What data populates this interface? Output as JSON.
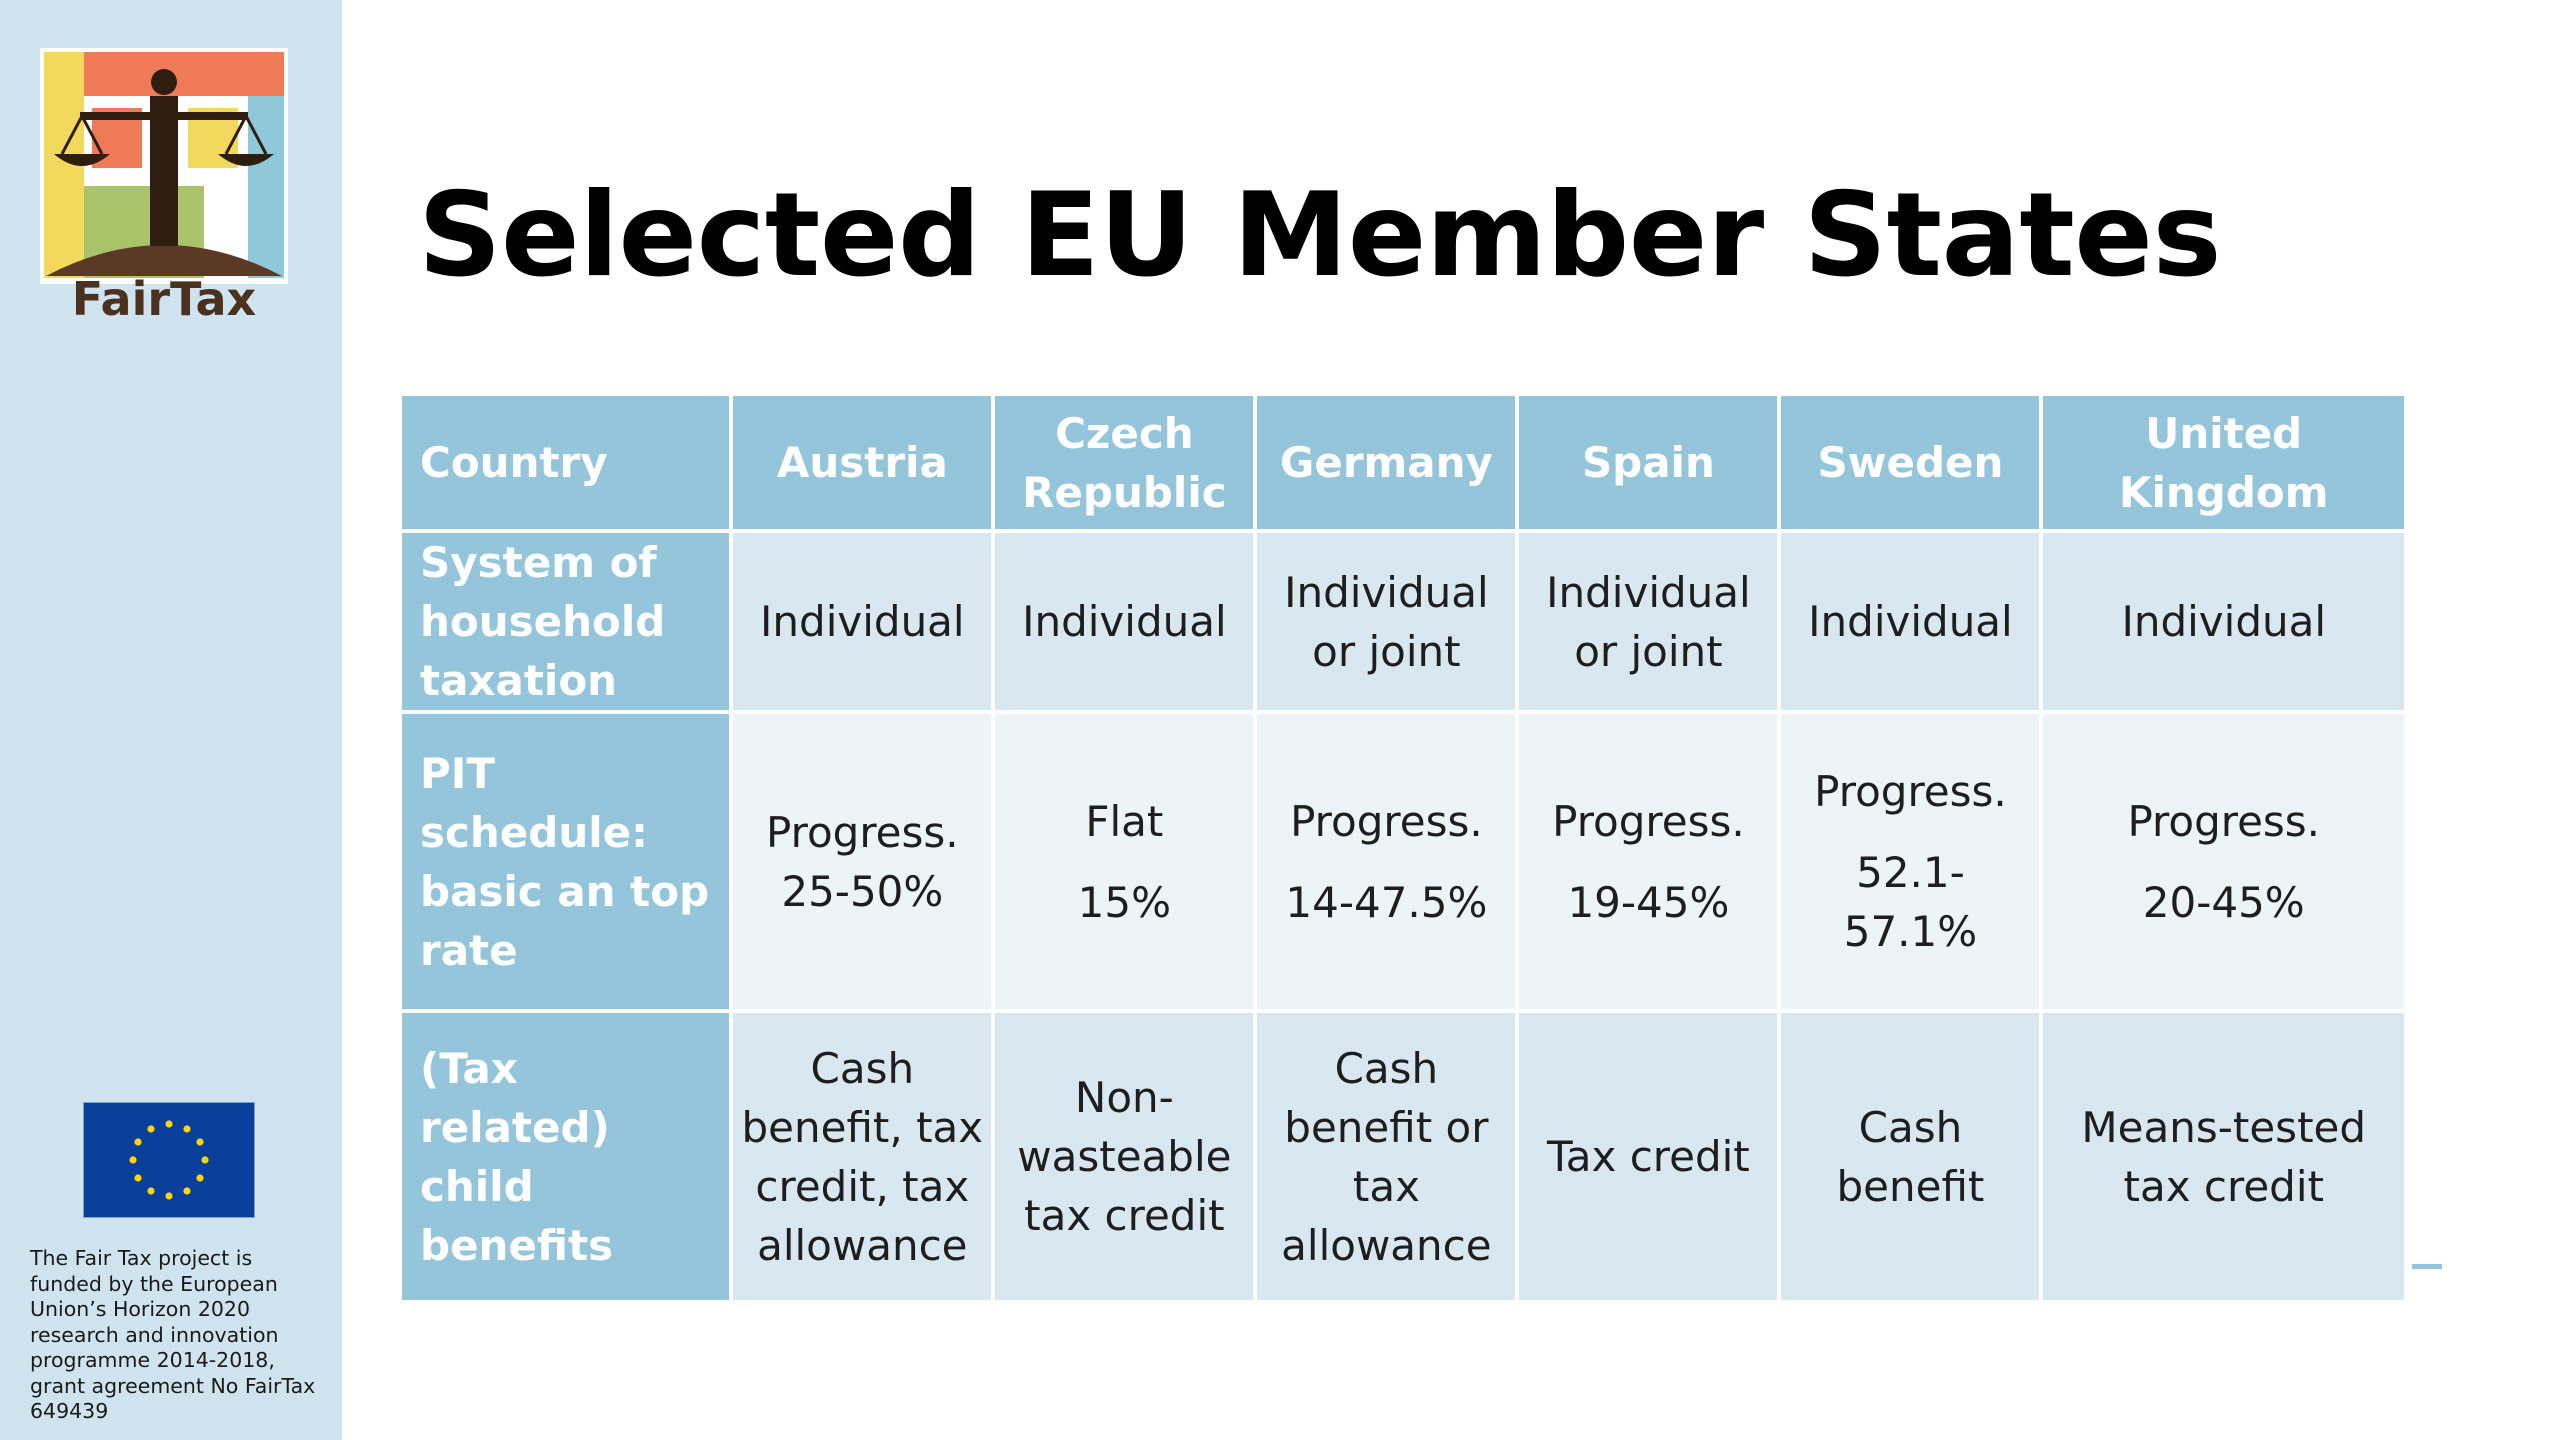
{
  "slide": {
    "title": "Selected EU Member States"
  },
  "sidebar": {
    "logo_text": "FairTax",
    "funding_text": "The Fair Tax project is funded by the European Union’s Horizon 2020 research and innovation programme 2014-2018, grant agreement No FairTax 649439"
  },
  "colors": {
    "sidebar_bg": "#cfe4ee",
    "header_bg": "#94c5da",
    "row_dark": "#d9e8f0",
    "row_light": "#edf4f8",
    "eu_blue": "#0a3e9b",
    "eu_star": "#ffd500"
  },
  "table": {
    "header": {
      "label": "Country",
      "countries": [
        "Austria",
        "Czech Republic",
        "Germany",
        "Spain",
        "Sweden",
        "United Kingdom"
      ]
    },
    "rows": {
      "household": {
        "label": "System of household taxation",
        "cells": [
          "Individual",
          "Individual",
          "Individual or joint",
          "Individual or joint",
          "Individual",
          "Individual"
        ]
      },
      "pit": {
        "label": "PIT schedule: basic an top rate",
        "austria_rate": "Progress. 25-50%",
        "czech_type": "Flat",
        "czech_rate": "15%",
        "germany_type": "Progress.",
        "germany_rate": "14-47.5%",
        "spain_type": "Progress.",
        "spain_rate": "19-45%",
        "sweden_type": "Progress.",
        "sweden_rate": "52.1-57.1%",
        "uk_type": "Progress.",
        "uk_rate": "20-45%"
      },
      "child": {
        "label": "(Tax related) child benefits",
        "cells": [
          "Cash benefit, tax credit, tax allowance",
          "Non-wasteable tax credit",
          "Cash benefit or tax allowance",
          "Tax credit",
          "Cash benefit",
          "Means-tested tax credit"
        ]
      }
    }
  }
}
